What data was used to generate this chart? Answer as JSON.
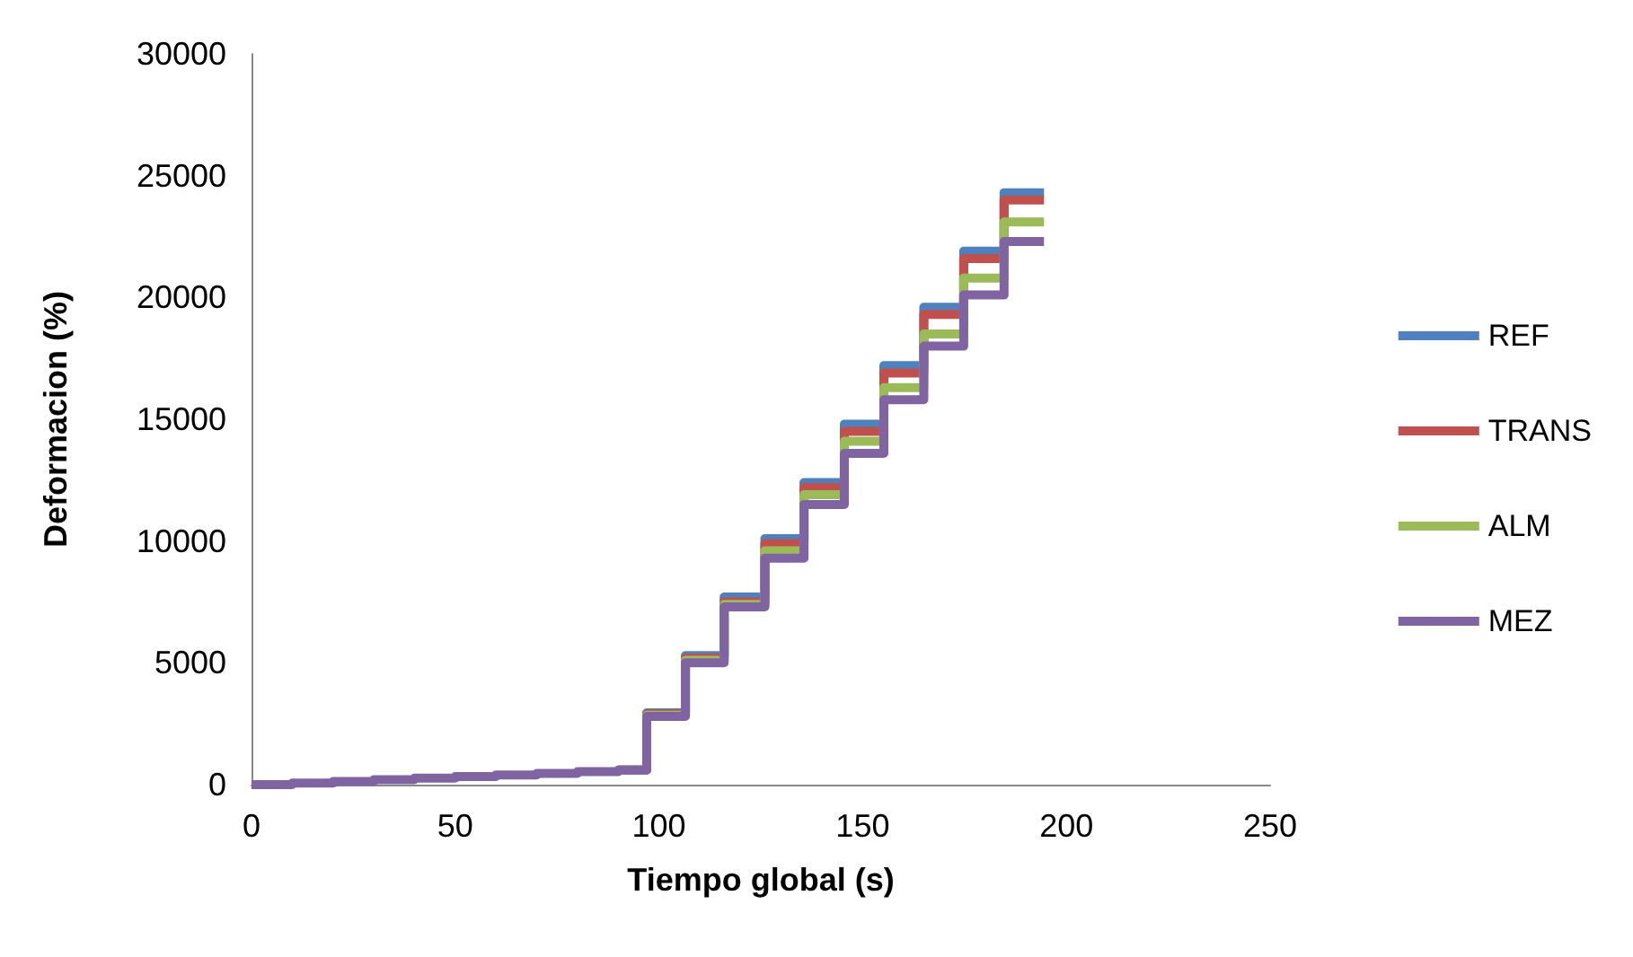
{
  "chart_data": {
    "type": "step",
    "xlabel": "Tiempo global (s)",
    "ylabel": "Deformacion (%)",
    "x": [
      0,
      10,
      20,
      30,
      40,
      50,
      60,
      70,
      80,
      90,
      97,
      106.5,
      116,
      126,
      135.6,
      145.5,
      155.2,
      165,
      174.8,
      184.7,
      194.5
    ],
    "series": [
      {
        "name": "REF",
        "color": "#4f81bd",
        "values": [
          null,
          null,
          null,
          null,
          null,
          null,
          null,
          null,
          null,
          600,
          2950,
          5300,
          7700,
          10100,
          12400,
          14800,
          17200,
          19600,
          21900,
          24300,
          24300
        ]
      },
      {
        "name": "TRANS",
        "color": "#c0504d",
        "values": [
          null,
          null,
          null,
          null,
          null,
          null,
          null,
          null,
          null,
          600,
          2900,
          5200,
          7500,
          9900,
          12200,
          14500,
          16900,
          19300,
          21600,
          24000,
          24000
        ]
      },
      {
        "name": "ALM",
        "color": "#9bbb59",
        "values": [
          null,
          null,
          null,
          null,
          null,
          null,
          null,
          null,
          null,
          600,
          2850,
          5100,
          7400,
          9600,
          11900,
          14100,
          16300,
          18500,
          20800,
          23100,
          23100
        ]
      },
      {
        "name": "MEZ",
        "color": "#8064a2",
        "values": [
          0,
          60,
          130,
          200,
          270,
          330,
          400,
          460,
          530,
          600,
          2800,
          5000,
          7300,
          9300,
          11500,
          13600,
          15800,
          18000,
          20100,
          22300,
          22300
        ]
      }
    ],
    "xlim": [
      0,
      250
    ],
    "xticks": [
      0,
      50,
      100,
      150,
      200,
      250
    ],
    "ylim": [
      0,
      30000
    ],
    "yticks": [
      0,
      5000,
      10000,
      15000,
      20000,
      25000,
      30000
    ],
    "grid": false,
    "legend": "right",
    "line_style": "solid",
    "marker": "none"
  }
}
